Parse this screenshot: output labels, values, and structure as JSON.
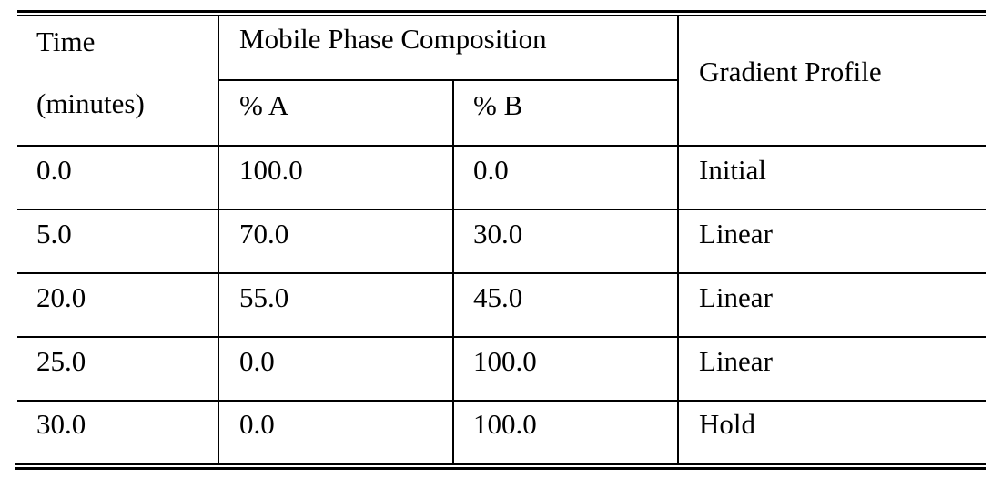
{
  "table": {
    "headers": {
      "time": [
        "Time",
        "(minutes)"
      ],
      "mobile_phase": "Mobile Phase Composition",
      "percent_a": "% A",
      "percent_b": "% B",
      "gradient": "Gradient Profile"
    },
    "rows": [
      {
        "time": "0.0",
        "a": "100.0",
        "b": "0.0",
        "profile": "Initial"
      },
      {
        "time": "5.0",
        "a": "70.0",
        "b": "30.0",
        "profile": "Linear"
      },
      {
        "time": "20.0",
        "a": "55.0",
        "b": "45.0",
        "profile": "Linear"
      },
      {
        "time": "25.0",
        "a": "0.0",
        "b": "100.0",
        "profile": "Linear"
      },
      {
        "time": "30.0",
        "a": "0.0",
        "b": "100.0",
        "profile": "Hold"
      }
    ]
  }
}
